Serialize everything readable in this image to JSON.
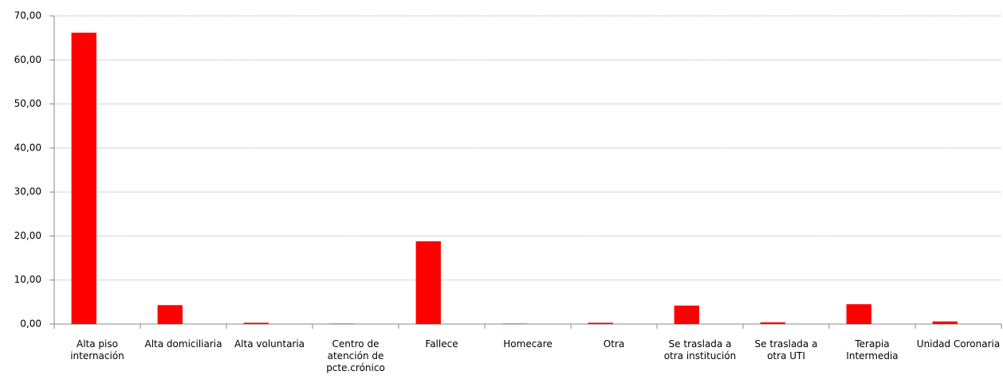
{
  "chart_data": {
    "type": "bar",
    "categories": [
      "Alta piso internación",
      "Alta domiciliaria",
      "Alta voluntaria",
      "Centro de atención de pcte.crónico",
      "Fallece",
      "Homecare",
      "Otra",
      "Se traslada a otra institución",
      "Se traslada a otra UTI",
      "Terapia Intermedia",
      "Unidad Coronaria"
    ],
    "values": [
      66.2,
      4.3,
      0.3,
      0.1,
      18.8,
      0.1,
      0.3,
      4.2,
      0.4,
      4.5,
      0.6
    ],
    "color": "#ff0000",
    "ylim": [
      0,
      70
    ],
    "yticks": [
      {
        "value": 0,
        "label": "0,00"
      },
      {
        "value": 10,
        "label": "10,00"
      },
      {
        "value": 20,
        "label": "20,00"
      },
      {
        "value": 30,
        "label": "30,00"
      },
      {
        "value": 40,
        "label": "40,00"
      },
      {
        "value": 50,
        "label": "50,00"
      },
      {
        "value": 60,
        "label": "60,00"
      },
      {
        "value": 70,
        "label": "70,00"
      }
    ],
    "grid": true
  }
}
